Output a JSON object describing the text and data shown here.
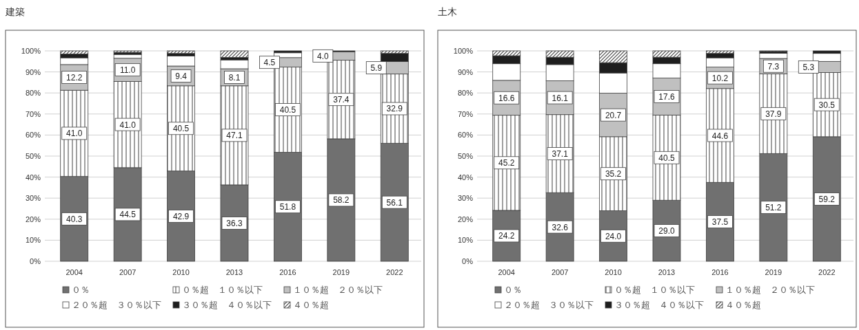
{
  "chart_data": [
    {
      "type": "bar",
      "stacked": true,
      "title": "建築",
      "categories": [
        "2004",
        "2007",
        "2010",
        "2013",
        "2016",
        "2019",
        "2022"
      ],
      "ylim": [
        0,
        100
      ],
      "yticks": [
        {
          "value": 0,
          "label": "0%"
        },
        {
          "value": 10,
          "label": "10%"
        },
        {
          "value": 20,
          "label": "20%"
        },
        {
          "value": 30,
          "label": "30%"
        },
        {
          "value": 40,
          "label": "40%"
        },
        {
          "value": 50,
          "label": "50%"
        },
        {
          "value": 60,
          "label": "60%"
        },
        {
          "value": 70,
          "label": "70%"
        },
        {
          "value": 80,
          "label": "80%"
        },
        {
          "value": 90,
          "label": "90%"
        },
        {
          "value": 100,
          "label": "100%"
        }
      ],
      "grid": "y",
      "legend": "bottom",
      "series": [
        {
          "name": "０％",
          "color": "#707070",
          "values": [
            40.3,
            44.5,
            42.9,
            36.3,
            51.8,
            58.2,
            56.1
          ],
          "value_labels": [
            "40.3",
            "44.5",
            "42.9",
            "36.3",
            "51.8",
            "58.2",
            "56.1"
          ]
        },
        {
          "name": "０％超　１０％以下",
          "color": "#ffffff",
          "values": [
            41.0,
            41.0,
            40.5,
            47.1,
            40.5,
            37.4,
            32.9
          ],
          "value_labels": [
            "41.0",
            "41.0",
            "40.5",
            "47.1",
            "40.5",
            "37.4",
            "32.9"
          ]
        },
        {
          "name": "１０％超　２０％以下",
          "color": "#c0c0c0",
          "values": [
            12.2,
            11.0,
            9.4,
            8.1,
            4.5,
            4.0,
            5.9
          ],
          "value_labels": [
            "12.2",
            "11.0",
            "9.4",
            "8.1",
            "4.5",
            "4.0",
            "5.9"
          ]
        },
        {
          "name": "２０％超　３０％以下",
          "color": "#ffffff",
          "values": [
            3.2,
            1.8,
            4.8,
            4.2,
            2.3,
            0,
            0
          ],
          "value_labels": [
            null,
            null,
            null,
            null,
            null,
            null,
            null
          ]
        },
        {
          "name": "３０％超　４０％以下",
          "color": "#1e1e1e",
          "values": [
            1.8,
            1.0,
            1.2,
            1.2,
            0.9,
            0.4,
            3.9
          ],
          "value_labels": [
            null,
            null,
            null,
            null,
            null,
            null,
            null
          ]
        },
        {
          "name": "４０％超",
          "color": "#ffffff",
          "values": [
            1.5,
            0.7,
            1.2,
            3.1,
            0,
            0,
            1.2
          ],
          "value_labels": [
            null,
            null,
            null,
            null,
            null,
            null,
            null
          ]
        }
      ]
    },
    {
      "type": "bar",
      "stacked": true,
      "title": "土木",
      "categories": [
        "2004",
        "2007",
        "2010",
        "2013",
        "2016",
        "2019",
        "2022"
      ],
      "ylim": [
        0,
        100
      ],
      "yticks": [
        {
          "value": 0,
          "label": "0%"
        },
        {
          "value": 10,
          "label": "10%"
        },
        {
          "value": 20,
          "label": "20%"
        },
        {
          "value": 30,
          "label": "30%"
        },
        {
          "value": 40,
          "label": "40%"
        },
        {
          "value": 50,
          "label": "50%"
        },
        {
          "value": 60,
          "label": "60%"
        },
        {
          "value": 70,
          "label": "70%"
        },
        {
          "value": 80,
          "label": "80%"
        },
        {
          "value": 90,
          "label": "90%"
        },
        {
          "value": 100,
          "label": "100%"
        }
      ],
      "grid": "y",
      "legend": "bottom",
      "series": [
        {
          "name": "０％",
          "color": "#707070",
          "values": [
            24.2,
            32.6,
            24.0,
            29.0,
            37.5,
            51.2,
            59.2
          ],
          "value_labels": [
            "24.2",
            "32.6",
            "24.0",
            "29.0",
            "37.5",
            "51.2",
            "59.2"
          ]
        },
        {
          "name": "０％超　１０％以下",
          "color": "#ffffff",
          "values": [
            45.2,
            37.1,
            35.2,
            40.5,
            44.6,
            37.9,
            30.5
          ],
          "value_labels": [
            "45.2",
            "37.1",
            "35.2",
            "40.5",
            "44.6",
            "37.9",
            "30.5"
          ]
        },
        {
          "name": "１０％超　２０％以下",
          "color": "#c0c0c0",
          "values": [
            16.6,
            16.1,
            20.7,
            17.6,
            10.2,
            7.3,
            5.3
          ],
          "value_labels": [
            "16.6",
            "16.1",
            "20.7",
            "17.6",
            "10.2",
            "7.3",
            "5.3"
          ]
        },
        {
          "name": "２０％超　３０％以下",
          "color": "#ffffff",
          "values": [
            7.9,
            7.7,
            9.6,
            6.8,
            4.4,
            2.5,
            3.8
          ],
          "value_labels": [
            null,
            null,
            null,
            null,
            null,
            null,
            null
          ]
        },
        {
          "name": "３０％超　４０％以下",
          "color": "#1e1e1e",
          "values": [
            3.8,
            3.5,
            4.9,
            3.1,
            2.1,
            0.8,
            1.2
          ],
          "value_labels": [
            null,
            null,
            null,
            null,
            null,
            null,
            null
          ]
        },
        {
          "name": "４０％超",
          "color": "#ffffff",
          "values": [
            2.3,
            3.0,
            5.6,
            3.0,
            1.2,
            0.3,
            0
          ],
          "value_labels": [
            null,
            null,
            null,
            null,
            null,
            null,
            null
          ]
        }
      ]
    }
  ]
}
